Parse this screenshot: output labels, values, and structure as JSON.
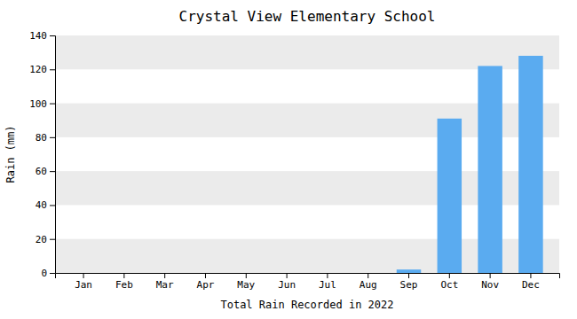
{
  "chart_data": {
    "type": "bar",
    "title": "Crystal View Elementary School",
    "xlabel": "Total Rain Recorded in 2022",
    "ylabel": "Rain (mm)",
    "categories": [
      "Jan",
      "Feb",
      "Mar",
      "Apr",
      "May",
      "Jun",
      "Jul",
      "Aug",
      "Sep",
      "Oct",
      "Nov",
      "Dec"
    ],
    "values": [
      0,
      0,
      0,
      0,
      0,
      0,
      0,
      0,
      2,
      91,
      122,
      128
    ],
    "color": "#5aabf0",
    "ylim": [
      0,
      140
    ],
    "yticks": [
      0,
      20,
      40,
      60,
      80,
      100,
      120,
      140
    ],
    "grid": true
  }
}
